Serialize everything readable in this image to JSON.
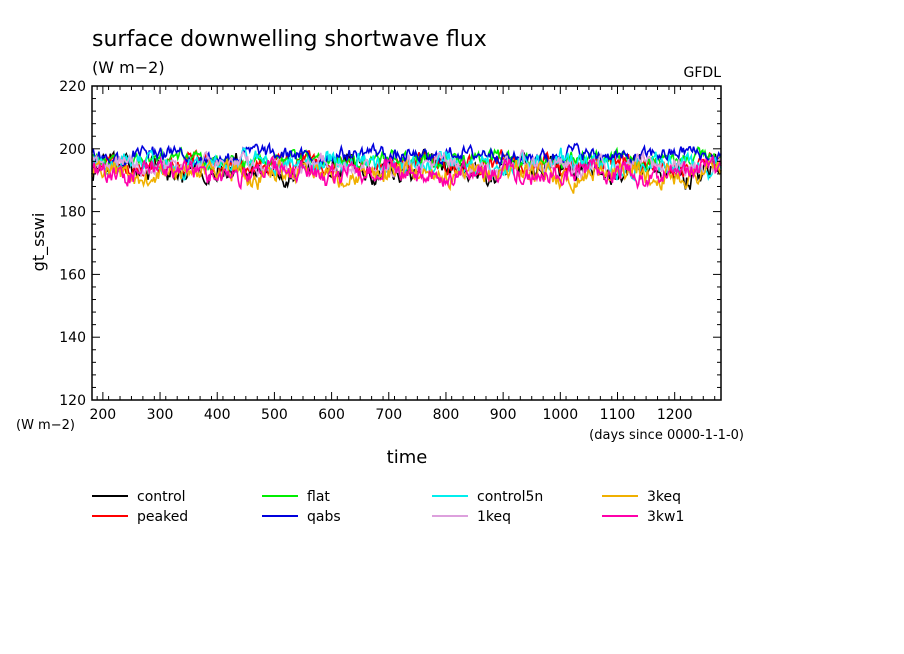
{
  "chart_data": {
    "type": "line",
    "title": "surface downwelling shortwave flux",
    "subtitle": "(W m−2)",
    "source_label": "GFDL",
    "ylabel": "gt_sswi",
    "yunits": "(W m−2)",
    "xlabel": "time",
    "xunits": "(days since 0000-1-1-0)",
    "xlim": [
      181,
      1281
    ],
    "ylim": [
      120,
      220
    ],
    "xticks": [
      200,
      300,
      400,
      500,
      600,
      700,
      800,
      900,
      1000,
      1100,
      1200
    ],
    "yticks": [
      120,
      140,
      160,
      180,
      200,
      220
    ],
    "grid": false,
    "legend_position": "bottom",
    "series": [
      {
        "name": "control",
        "color": "#000000",
        "mean": 193.5,
        "amp": 4.0
      },
      {
        "name": "peaked",
        "color": "#ff0000",
        "mean": 195.0,
        "amp": 3.0
      },
      {
        "name": "flat",
        "color": "#00ee00",
        "mean": 196.5,
        "amp": 2.5
      },
      {
        "name": "qabs",
        "color": "#0000dd",
        "mean": 198.0,
        "amp": 2.5
      },
      {
        "name": "control5n",
        "color": "#00eeee",
        "mean": 195.0,
        "amp": 3.5
      },
      {
        "name": "1keq",
        "color": "#dda0dd",
        "mean": 194.5,
        "amp": 3.0
      },
      {
        "name": "3keq",
        "color": "#f0b000",
        "mean": 192.0,
        "amp": 3.5
      },
      {
        "name": "3kw1",
        "color": "#ff00aa",
        "mean": 192.5,
        "amp": 3.5
      }
    ]
  }
}
